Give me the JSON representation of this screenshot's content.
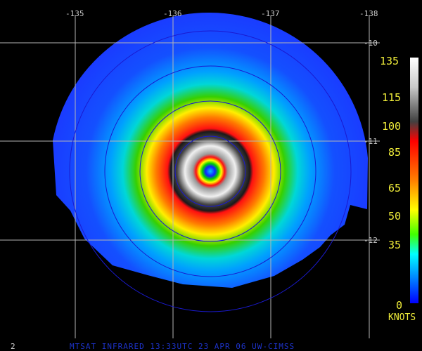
{
  "longitude_labels": [
    "-135",
    "-136",
    "-137",
    "-138"
  ],
  "latitude_labels": [
    "-10",
    "-11",
    "-12"
  ],
  "colorbar": {
    "ticks": [
      "135",
      "115",
      "100",
      "85",
      "65",
      "50",
      "35",
      "0"
    ],
    "unit": "KNOTS",
    "tick_values": [
      135,
      115,
      100,
      85,
      65,
      50,
      35,
      0
    ]
  },
  "footer_text": "MTSAT INFRARED 13:33UTC 23 APR 06 UW-CIMSS",
  "frame_number": "2",
  "colors": {
    "grid": "#b5b5b5",
    "range_rings": "#1a1ad0",
    "label_yellow": "#f2ef3a",
    "footer_blue": "#1d33c9"
  }
}
